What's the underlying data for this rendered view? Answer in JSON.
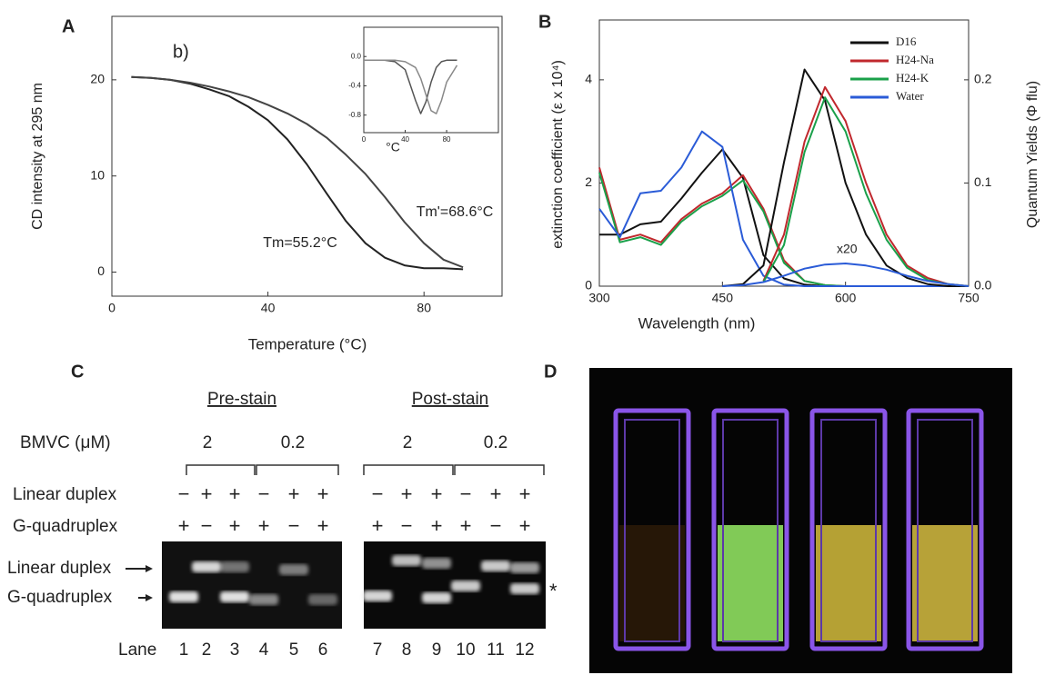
{
  "panel_labels": [
    "A",
    "B",
    "C",
    "D"
  ],
  "chart_data": [
    {
      "type": "line",
      "annotation": "b)",
      "annotations": [
        "Tm=55.2°C",
        "Tm'=68.6°C"
      ],
      "xlabel": "Temperature (°C)",
      "ylabel": "CD intensity at 295 nm",
      "x": [
        5,
        10,
        15,
        20,
        25,
        30,
        35,
        40,
        45,
        50,
        55,
        60,
        65,
        70,
        75,
        80,
        85,
        90
      ],
      "series": [
        {
          "color": "#222222",
          "values": [
            20.3,
            20.2,
            20.0,
            19.6,
            19.0,
            18.3,
            17.2,
            15.8,
            13.8,
            11.2,
            8.2,
            5.3,
            3.0,
            1.5,
            0.7,
            0.4,
            0.4,
            0.3
          ]
        },
        {
          "color": "#444444",
          "values": [
            20.3,
            20.2,
            20.0,
            19.7,
            19.3,
            18.8,
            18.2,
            17.4,
            16.5,
            15.4,
            14.0,
            12.2,
            10.2,
            7.8,
            5.2,
            3.0,
            1.3,
            0.5
          ]
        }
      ],
      "xlim": [
        0,
        100
      ],
      "ylim": [
        -2.5,
        26.6
      ],
      "xticks": [
        0,
        40,
        80
      ],
      "yticks": [
        0,
        10,
        20
      ]
    },
    {
      "type": "line",
      "xlabel": "°C",
      "x": [
        0,
        10,
        20,
        30,
        40,
        50,
        55,
        60,
        65,
        70,
        75,
        80,
        90
      ],
      "series": [
        {
          "color": "#555555",
          "values": [
            -0.05,
            -0.05,
            -0.05,
            -0.07,
            -0.18,
            -0.6,
            -0.78,
            -0.62,
            -0.35,
            -0.15,
            -0.07,
            -0.05,
            -0.05
          ]
        },
        {
          "color": "#888888",
          "values": [
            -0.05,
            -0.05,
            -0.05,
            -0.05,
            -0.07,
            -0.15,
            -0.3,
            -0.52,
            -0.74,
            -0.78,
            -0.6,
            -0.35,
            -0.12
          ]
        }
      ],
      "xlim": [
        0,
        130
      ],
      "ylim": [
        -1.04,
        0.4
      ],
      "xticks": [
        0,
        40,
        80
      ],
      "yticks": [
        {
          "value": 0,
          "label": "0.0"
        },
        -0.4,
        -0.8
      ]
    },
    {
      "type": "line",
      "xlabel": "Wavelength (nm)",
      "ylabel": "extinction coefficient (ε x 10⁴)",
      "y2label": "Quantum Yields (Φ flu)",
      "annotation": "x20",
      "legend": "upper right",
      "x": [
        300,
        325,
        350,
        375,
        400,
        425,
        450,
        475,
        500,
        525,
        550,
        575,
        600,
        625,
        650,
        675,
        700,
        725,
        750
      ],
      "series": [
        {
          "name": "D16",
          "color": "#111111",
          "values": [
            1.0,
            1.0,
            1.2,
            1.25,
            1.7,
            2.2,
            2.65,
            2.1,
            0.6,
            0.15,
            0.03,
            0,
            0,
            0,
            0,
            0,
            0,
            0,
            0
          ]
        },
        {
          "name": "H24-Na",
          "color": "#c0282d",
          "values": [
            2.3,
            0.9,
            1.0,
            0.85,
            1.3,
            1.6,
            1.8,
            2.15,
            1.5,
            0.5,
            0.1,
            0.02,
            0,
            0,
            0,
            0,
            0,
            0,
            0
          ]
        },
        {
          "name": "H24-K",
          "color": "#1aa04a",
          "values": [
            2.2,
            0.85,
            0.95,
            0.8,
            1.25,
            1.55,
            1.75,
            2.05,
            1.45,
            0.45,
            0.1,
            0.02,
            0,
            0,
            0,
            0,
            0,
            0,
            0
          ]
        },
        {
          "name": "Water",
          "color": "#2a5bd7",
          "values": [
            1.5,
            0.95,
            1.8,
            1.85,
            2.3,
            3.0,
            2.7,
            0.9,
            0.2,
            0.03,
            0,
            0,
            0,
            0,
            0,
            0,
            0,
            0,
            0
          ]
        }
      ],
      "emission_series": [
        {
          "axis": "y2",
          "color": "#111111",
          "values": [
            null,
            null,
            null,
            null,
            null,
            null,
            0,
            0.002,
            0.02,
            0.12,
            0.21,
            0.18,
            0.1,
            0.05,
            0.02,
            0.008,
            0.002,
            0,
            0
          ]
        },
        {
          "axis": "y2",
          "color": "#c0282d",
          "values": [
            null,
            null,
            null,
            null,
            null,
            null,
            null,
            null,
            0.005,
            0.05,
            0.14,
            0.193,
            0.16,
            0.1,
            0.05,
            0.02,
            0.008,
            0.002,
            0
          ]
        },
        {
          "axis": "y2",
          "color": "#1aa04a",
          "values": [
            null,
            null,
            null,
            null,
            null,
            null,
            null,
            null,
            0.004,
            0.04,
            0.13,
            0.183,
            0.15,
            0.09,
            0.045,
            0.018,
            0.006,
            0.002,
            0
          ]
        },
        {
          "axis": "y2",
          "color": "#2a5bd7",
          "values": [
            null,
            null,
            null,
            null,
            null,
            null,
            0,
            0.001,
            0.004,
            0.01,
            0.017,
            0.021,
            0.022,
            0.02,
            0.016,
            0.01,
            0.005,
            0.002,
            0
          ]
        }
      ],
      "xlim": [
        300,
        750
      ],
      "ylim": [
        0,
        5.16
      ],
      "y2lim": [
        0,
        0.258
      ],
      "xticks": [
        300,
        450,
        600,
        750
      ],
      "yticks": [
        0,
        2,
        4
      ],
      "y2ticks": [
        {
          "value": 0,
          "label": "0.0"
        },
        0.1,
        0.2
      ]
    }
  ],
  "gel": {
    "pre_stain": "Pre-stain",
    "post_stain": "Post-stain",
    "bmvc_label": "BMVC (μM)",
    "concentrations": [
      "2",
      "0.2",
      "2",
      "0.2"
    ],
    "rows": [
      {
        "label": "Linear duplex",
        "signs": [
          "−",
          "+",
          "+",
          "−",
          "+",
          "+",
          "−",
          "+",
          "+",
          "−",
          "+",
          "+"
        ]
      },
      {
        "label": "G-quadruplex",
        "signs": [
          "+",
          "−",
          "+",
          "+",
          "−",
          "+",
          "+",
          "−",
          "+",
          "+",
          "−",
          "+"
        ]
      }
    ],
    "band_labels": [
      "Linear duplex",
      "G-quadruplex"
    ],
    "asterisk": "*",
    "lane_label": "Lane",
    "lanes": [
      "1",
      "2",
      "3",
      "4",
      "5",
      "6",
      "7",
      "8",
      "9",
      "10",
      "11",
      "12"
    ]
  }
}
